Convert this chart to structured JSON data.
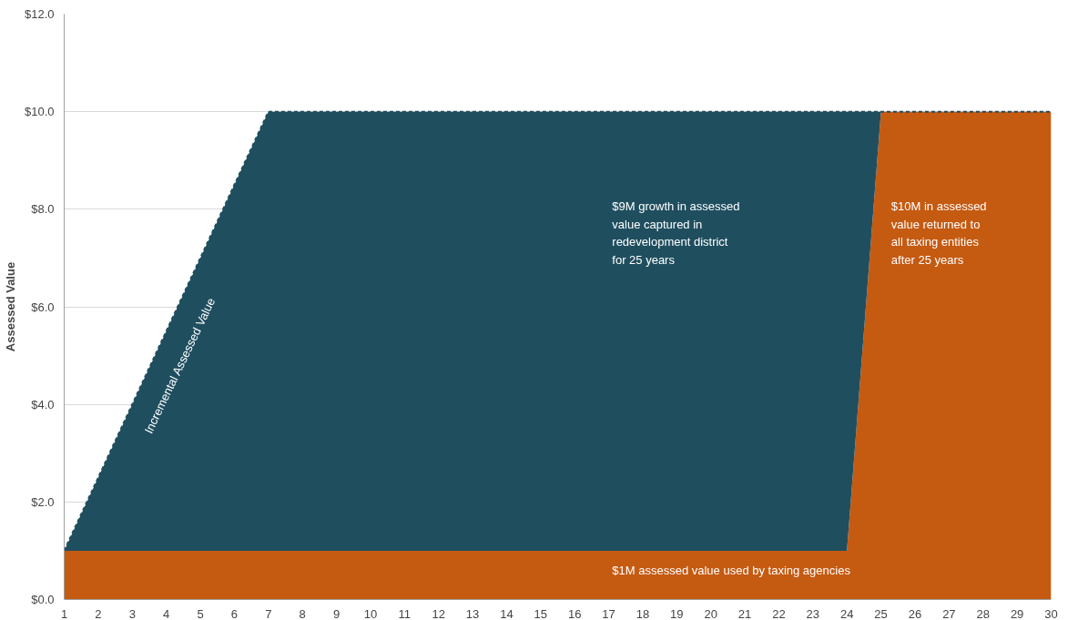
{
  "chart_data": {
    "type": "area",
    "stacked": true,
    "ylabel": "Assessed Value",
    "x": [
      1,
      2,
      3,
      4,
      5,
      6,
      7,
      8,
      9,
      10,
      11,
      12,
      13,
      14,
      15,
      16,
      17,
      18,
      19,
      20,
      21,
      22,
      23,
      24,
      25,
      26,
      27,
      28,
      29,
      30
    ],
    "series": [
      {
        "color": "#c55a11",
        "values": [
          1,
          1,
          1,
          1,
          1,
          1,
          1,
          1,
          1,
          1,
          1,
          1,
          1,
          1,
          1,
          1,
          1,
          1,
          1,
          1,
          1,
          1,
          1,
          1,
          10,
          10,
          10,
          10,
          10,
          10
        ]
      },
      {
        "color": "#1f4e5f",
        "line_style": "dashed",
        "values": [
          0,
          1.5,
          3,
          4.5,
          6,
          7.5,
          9,
          9,
          9,
          9,
          9,
          9,
          9,
          9,
          9,
          9,
          9,
          9,
          9,
          9,
          9,
          9,
          9,
          9,
          0,
          0,
          0,
          0,
          0,
          0
        ]
      }
    ],
    "xlim": [
      1,
      30
    ],
    "ylim": [
      0,
      12
    ],
    "xticks": [
      1,
      2,
      3,
      4,
      5,
      6,
      7,
      8,
      9,
      10,
      11,
      12,
      13,
      14,
      15,
      16,
      17,
      18,
      19,
      20,
      21,
      22,
      23,
      24,
      25,
      26,
      27,
      28,
      29,
      30
    ],
    "yticks": [
      {
        "value": 0,
        "label": "$0.0"
      },
      {
        "value": 2,
        "label": "$2.0"
      },
      {
        "value": 4,
        "label": "$4.0"
      },
      {
        "value": 6,
        "label": "$6.0"
      },
      {
        "value": 8,
        "label": "$8.0"
      },
      {
        "value": 10,
        "label": "$10.0"
      },
      {
        "value": 12,
        "label": "$12.0"
      }
    ],
    "grid": "y",
    "annotations": [
      "Incremental Assessed Value",
      "$9M growth in assessed\nvalue captured in\nredevelopment district\nfor 25 years",
      "$10M in assessed\nvalue returned to\nall taxing entities\nafter 25 years",
      "$1M assessed value used by taxing agencies"
    ]
  }
}
